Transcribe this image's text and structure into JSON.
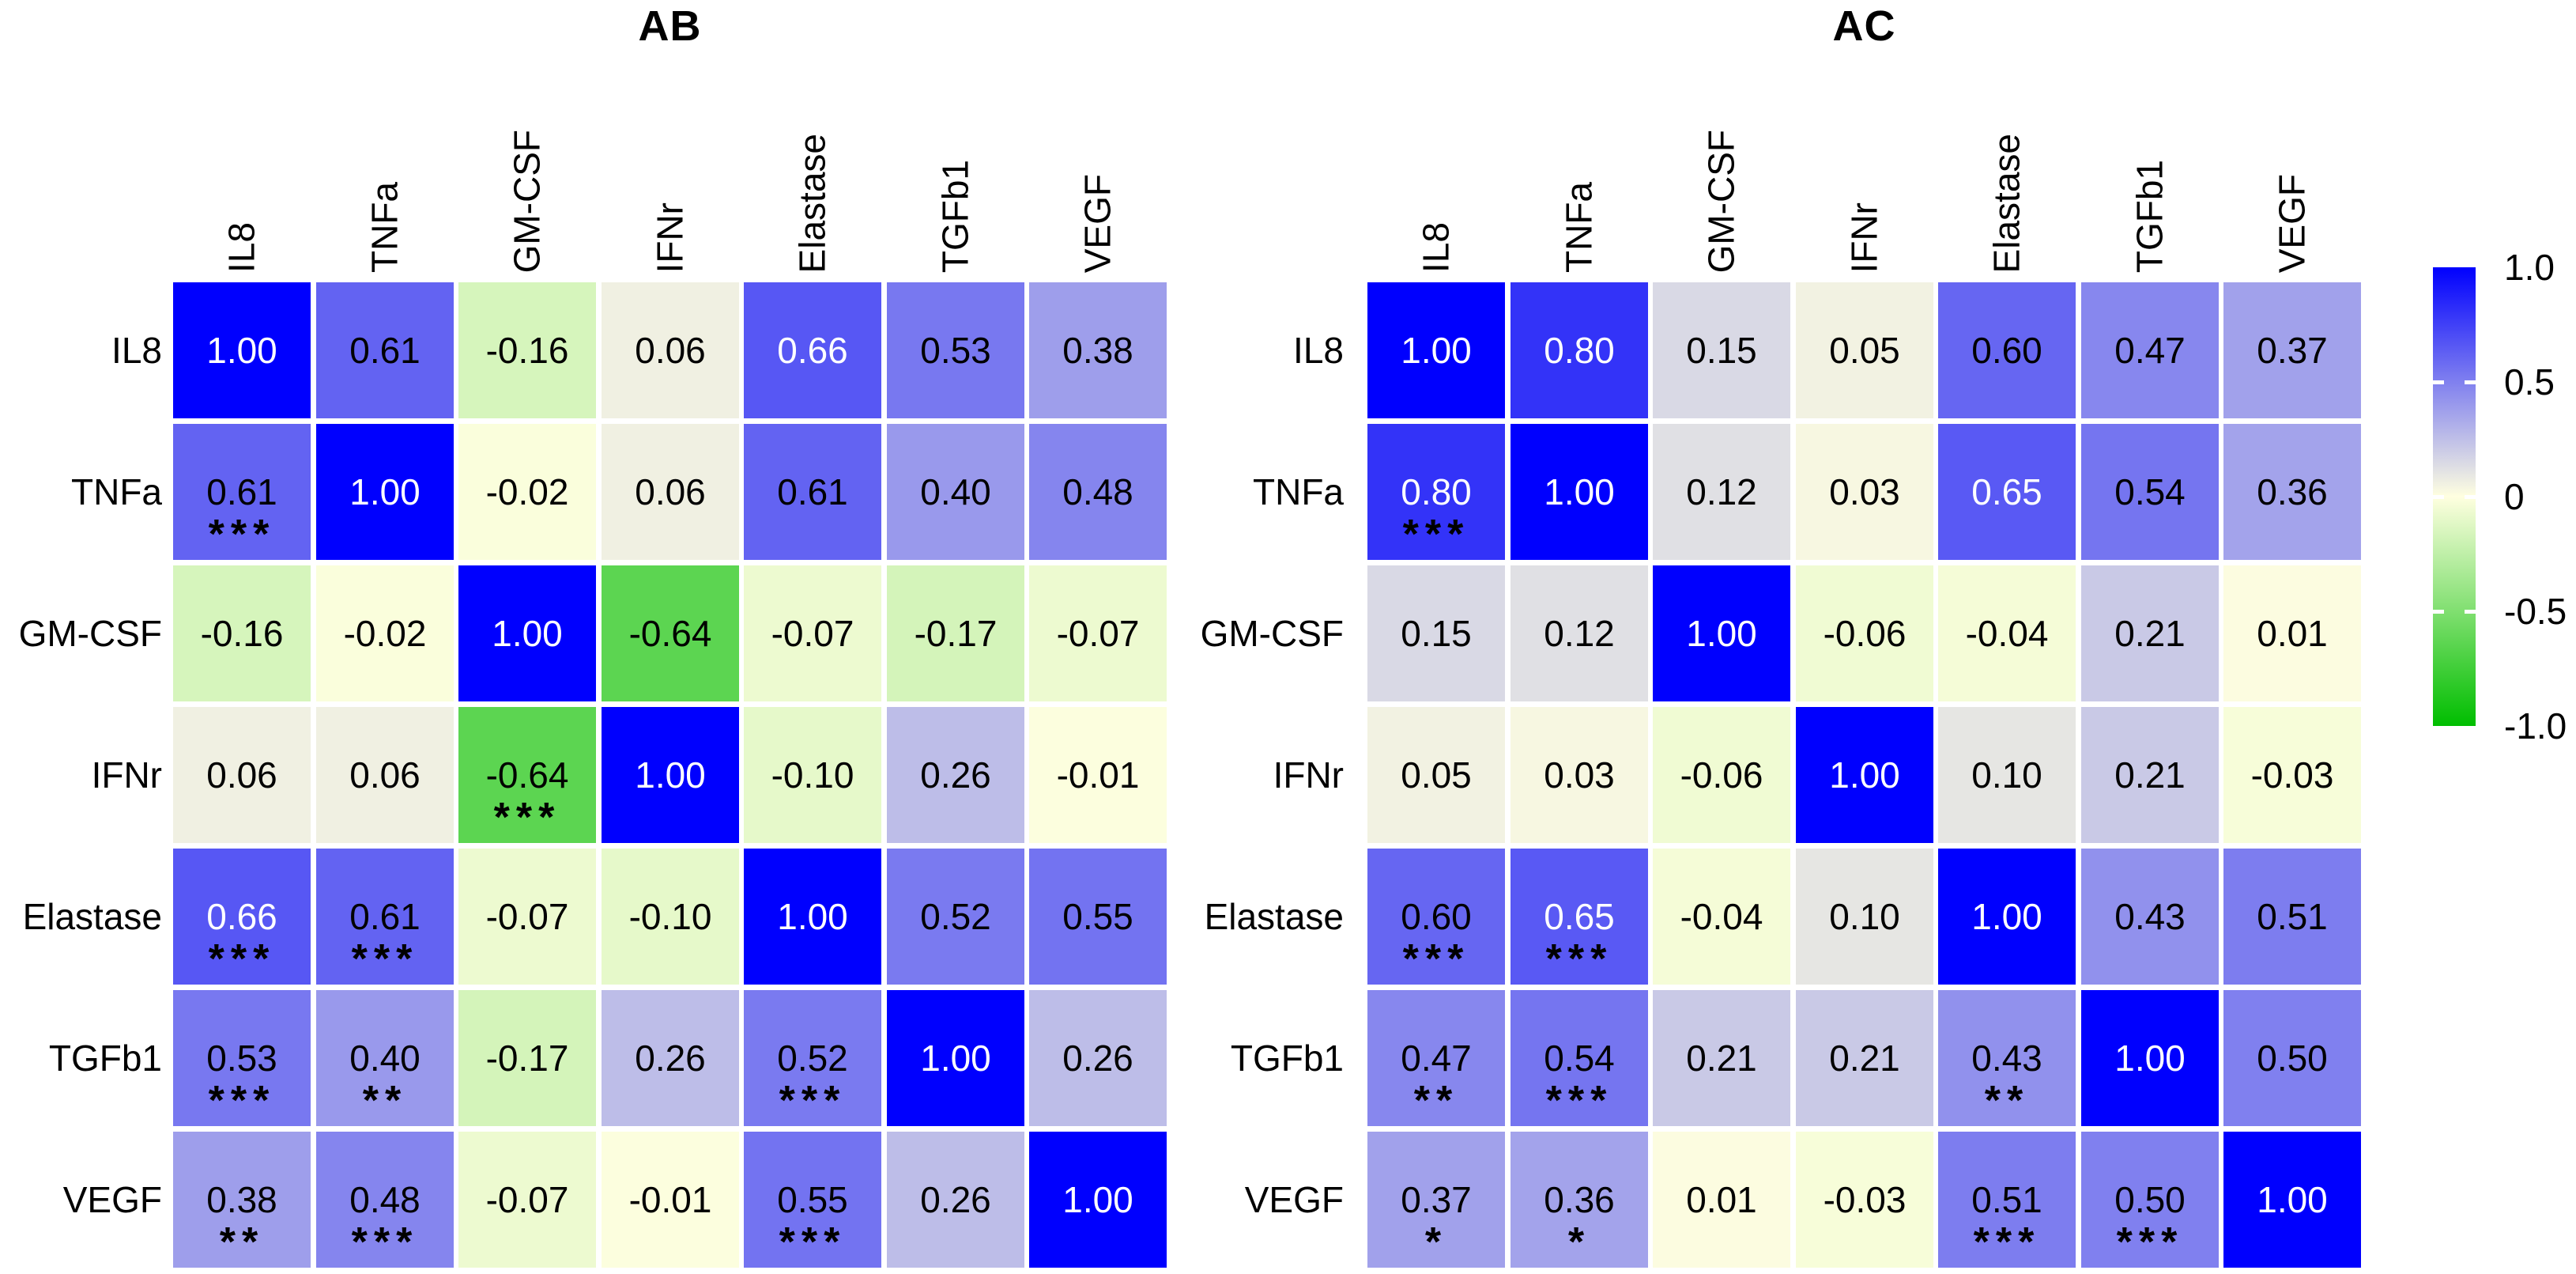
{
  "chart_data": [
    {
      "type": "heatmap",
      "title": "AB",
      "x_labels": [
        "IL8",
        "TNFa",
        "GM-CSF",
        "IFNr",
        "Elastase",
        "TGFb1",
        "VEGF"
      ],
      "y_labels": [
        "IL8",
        "TNFa",
        "GM-CSF",
        "IFNr",
        "Elastase",
        "TGFb1",
        "VEGF"
      ],
      "values": [
        [
          1.0,
          0.61,
          -0.16,
          0.06,
          0.66,
          0.53,
          0.38
        ],
        [
          0.61,
          1.0,
          -0.02,
          0.06,
          0.61,
          0.4,
          0.48
        ],
        [
          -0.16,
          -0.02,
          1.0,
          -0.64,
          -0.07,
          -0.17,
          -0.07
        ],
        [
          0.06,
          0.06,
          -0.64,
          1.0,
          -0.1,
          0.26,
          -0.01
        ],
        [
          0.66,
          0.61,
          -0.07,
          -0.1,
          1.0,
          0.52,
          0.55
        ],
        [
          0.53,
          0.4,
          -0.17,
          0.26,
          0.52,
          1.0,
          0.26
        ],
        [
          0.38,
          0.48,
          -0.07,
          -0.01,
          0.55,
          0.26,
          1.0
        ]
      ],
      "significance": [
        [
          "",
          "",
          "",
          "",
          "",
          "",
          ""
        ],
        [
          "***",
          "",
          "",
          "",
          "",
          "",
          ""
        ],
        [
          "",
          "",
          "",
          "",
          "",
          "",
          ""
        ],
        [
          "",
          "",
          "***",
          "",
          "",
          "",
          ""
        ],
        [
          "***",
          "***",
          "",
          "",
          "",
          "",
          ""
        ],
        [
          "***",
          "**",
          "",
          "",
          "***",
          "",
          ""
        ],
        [
          "**",
          "***",
          "",
          "",
          "***",
          "",
          ""
        ]
      ],
      "value_range": [
        -1,
        1
      ]
    },
    {
      "type": "heatmap",
      "title": "AC",
      "x_labels": [
        "IL8",
        "TNFa",
        "GM-CSF",
        "IFNr",
        "Elastase",
        "TGFb1",
        "VEGF"
      ],
      "y_labels": [
        "IL8",
        "TNFa",
        "GM-CSF",
        "IFNr",
        "Elastase",
        "TGFb1",
        "VEGF"
      ],
      "values": [
        [
          1.0,
          0.8,
          0.15,
          0.05,
          0.6,
          0.47,
          0.37
        ],
        [
          0.8,
          1.0,
          0.12,
          0.03,
          0.65,
          0.54,
          0.36
        ],
        [
          0.15,
          0.12,
          1.0,
          -0.06,
          -0.04,
          0.21,
          0.01
        ],
        [
          0.05,
          0.03,
          -0.06,
          1.0,
          0.1,
          0.21,
          -0.03
        ],
        [
          0.6,
          0.65,
          -0.04,
          0.1,
          1.0,
          0.43,
          0.51
        ],
        [
          0.47,
          0.54,
          0.21,
          0.21,
          0.43,
          1.0,
          0.5
        ],
        [
          0.37,
          0.36,
          0.01,
          -0.03,
          0.51,
          0.5,
          1.0
        ]
      ],
      "significance": [
        [
          "",
          "",
          "",
          "",
          "",
          "",
          ""
        ],
        [
          "***",
          "",
          "",
          "",
          "",
          "",
          ""
        ],
        [
          "",
          "",
          "",
          "",
          "",
          "",
          ""
        ],
        [
          "",
          "",
          "",
          "",
          "",
          "",
          ""
        ],
        [
          "***",
          "***",
          "",
          "",
          "",
          "",
          ""
        ],
        [
          "**",
          "***",
          "",
          "",
          "**",
          "",
          ""
        ],
        [
          "*",
          "*",
          "",
          "",
          "***",
          "***",
          ""
        ]
      ],
      "value_range": [
        -1,
        1
      ]
    }
  ],
  "legend": {
    "ticks": [
      {
        "label": "1.0",
        "value": 1
      },
      {
        "label": "0.5",
        "value": 0.5
      },
      {
        "label": "0",
        "value": 0
      },
      {
        "label": "-0.5",
        "value": -0.5
      },
      {
        "label": "-1.0",
        "value": -1
      }
    ],
    "dash_values": [
      0.5,
      0,
      -0.5
    ],
    "position": "right"
  },
  "colors": {
    "positive_max": "#0000FE",
    "zero": "#FFFFE0",
    "negative_max": "#00BE00",
    "value_text_dark": "#000000",
    "value_text_light": "#FFFFFF",
    "significance_star": "#000000",
    "label_text": "#000000",
    "background": "#FFFFFF"
  }
}
